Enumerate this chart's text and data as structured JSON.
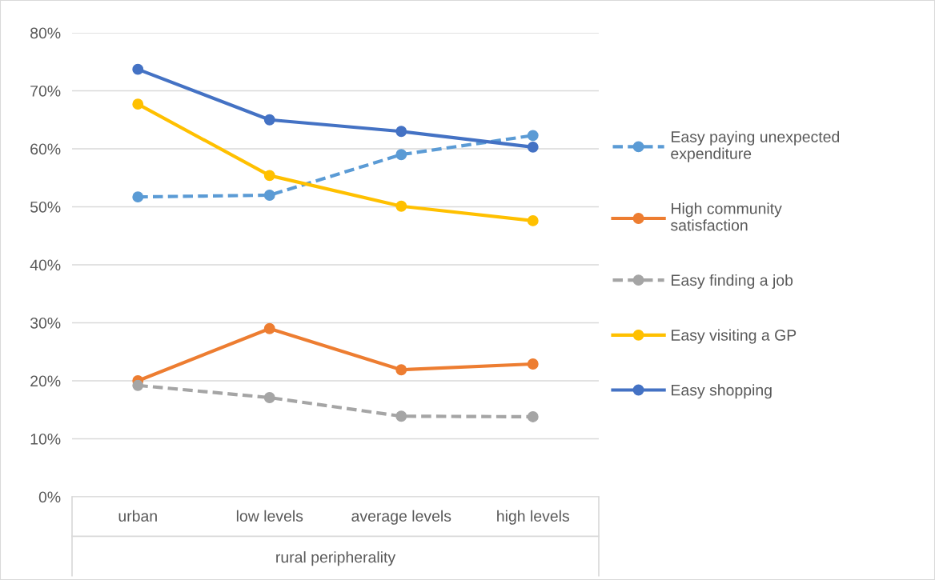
{
  "chart_data": {
    "type": "line",
    "xlabel": "rural peripherality",
    "categories": [
      "urban",
      "low levels",
      "average levels",
      "high levels"
    ],
    "series": [
      {
        "name": "Easy paying unexpected expenditure",
        "color": "#5b9bd5",
        "line_style": "dashed",
        "values": [
          51.7,
          52.0,
          59.0,
          62.3
        ]
      },
      {
        "name": "High community satisfaction",
        "color": "#ed7d31",
        "line_style": "solid",
        "values": [
          20.0,
          29.0,
          21.9,
          22.9
        ]
      },
      {
        "name": "Easy finding a job",
        "color": "#a5a5a5",
        "line_style": "dashed",
        "values": [
          19.2,
          17.1,
          13.9,
          13.8
        ]
      },
      {
        "name": "Easy visiting a GP",
        "color": "#ffc000",
        "line_style": "solid",
        "values": [
          67.7,
          55.4,
          50.1,
          47.6
        ]
      },
      {
        "name": "Easy shopping",
        "color": "#4472c4",
        "line_style": "solid",
        "values": [
          73.7,
          65.0,
          63.0,
          60.3
        ]
      }
    ],
    "ylim": [
      0,
      80
    ],
    "yticks": [
      {
        "value": 0,
        "label": "0%"
      },
      {
        "value": 10,
        "label": "10%"
      },
      {
        "value": 20,
        "label": "20%"
      },
      {
        "value": 30,
        "label": "30%"
      },
      {
        "value": 40,
        "label": "40%"
      },
      {
        "value": 50,
        "label": "50%"
      },
      {
        "value": 60,
        "label": "60%"
      },
      {
        "value": 70,
        "label": "70%"
      },
      {
        "value": 80,
        "label": "80%"
      }
    ],
    "grid": "y",
    "legend": "right",
    "marker": "circle"
  }
}
